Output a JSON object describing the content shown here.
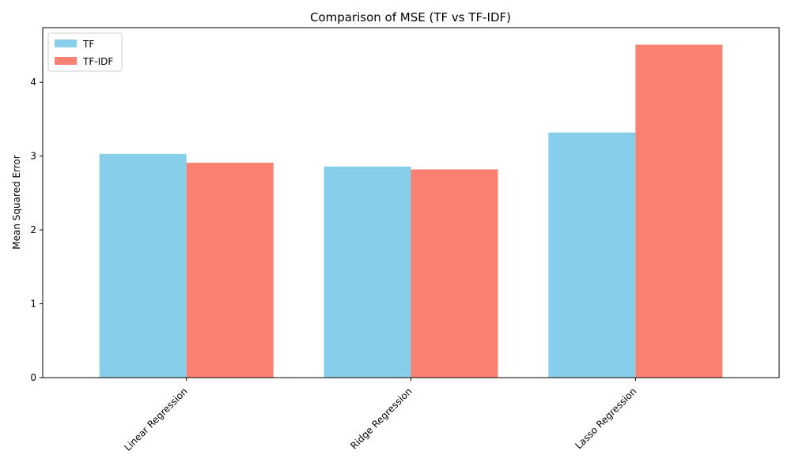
{
  "chart_data": {
    "type": "bar",
    "title": "Comparison of MSE (TF vs TF-IDF)",
    "xlabel": "",
    "ylabel": "Mean Squared Error",
    "categories": [
      "Linear Regression",
      "Ridge Regression",
      "Lasso Regression"
    ],
    "series": [
      {
        "name": "TF",
        "values": [
          3.03,
          2.86,
          3.32
        ],
        "color": "#87ceeb"
      },
      {
        "name": "TF-IDF",
        "values": [
          2.91,
          2.82,
          4.51
        ],
        "color": "#fa8072"
      }
    ],
    "ylim": [
      0,
      4.74
    ],
    "yticks": [
      "0",
      "1",
      "2",
      "3",
      "4"
    ],
    "grid": false,
    "legend_position": "top-left"
  }
}
